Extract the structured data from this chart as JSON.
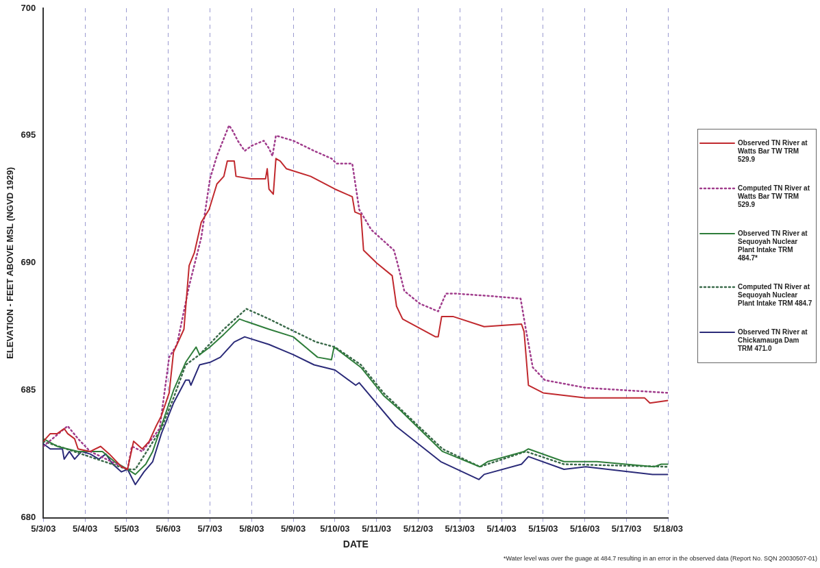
{
  "chart_data": {
    "type": "line",
    "xlabel": "DATE",
    "ylabel": "ELEVATION - FEET ABOVE MSL (NGVD 1929)",
    "annotations": [
      "*Water level was over the guage at 484.7 resulting in an error in the observed data (Report No. SQN 20030507-01)"
    ],
    "xlim": [
      "2003-05-03",
      "2003-05-18"
    ],
    "xticks": [
      {
        "value": "2003-05-03",
        "label": "5/3/03"
      },
      {
        "value": "2003-05-04",
        "label": "5/4/03"
      },
      {
        "value": "2003-05-05",
        "label": "5/5/03"
      },
      {
        "value": "2003-05-06",
        "label": "5/6/03"
      },
      {
        "value": "2003-05-07",
        "label": "5/7/03"
      },
      {
        "value": "2003-05-08",
        "label": "5/8/03"
      },
      {
        "value": "2003-05-09",
        "label": "5/9/03"
      },
      {
        "value": "2003-05-10",
        "label": "5/10/03"
      },
      {
        "value": "2003-05-11",
        "label": "5/11/03"
      },
      {
        "value": "2003-05-12",
        "label": "5/12/03"
      },
      {
        "value": "2003-05-13",
        "label": "5/13/03"
      },
      {
        "value": "2003-05-14",
        "label": "5/14/03"
      },
      {
        "value": "2003-05-15",
        "label": "5/15/03"
      },
      {
        "value": "2003-05-16",
        "label": "5/16/03"
      },
      {
        "value": "2003-05-17",
        "label": "5/17/03"
      },
      {
        "value": "2003-05-18",
        "label": "5/18/03"
      }
    ],
    "ylim": [
      680,
      700
    ],
    "yticks": [
      680,
      685,
      690,
      695,
      700
    ],
    "grid": "x",
    "legend": "right",
    "marker": "none",
    "series": [
      {
        "name": "Observed TN River at Watts Bar TW TRM 529.9",
        "color": "#c0282d",
        "line_style": "solid",
        "x": [
          "2003-05-03T00:00",
          "2003-05-03T04:00",
          "2003-05-03T08:00",
          "2003-05-03T12:00",
          "2003-05-03T14:00",
          "2003-05-03T18:00",
          "2003-05-03T20:00",
          "2003-05-04T03:00",
          "2003-05-04T09:00",
          "2003-05-04T14:00",
          "2003-05-04T21:00",
          "2003-05-05T00:30",
          "2003-05-05T04:00",
          "2003-05-05T09:00",
          "2003-05-05T13:00",
          "2003-05-05T17:00",
          "2003-05-05T20:00",
          "2003-05-06T00:30",
          "2003-05-06T03:00",
          "2003-05-06T09:00",
          "2003-05-06T12:00",
          "2003-05-06T15:00",
          "2003-05-06T19:00",
          "2003-05-06T23:30",
          "2003-05-07T04:00",
          "2003-05-07T08:00",
          "2003-05-07T10:00",
          "2003-05-07T14:00",
          "2003-05-07T15:00",
          "2003-05-07T23:30",
          "2003-05-08T08:00",
          "2003-05-08T09:00",
          "2003-05-08T10:00",
          "2003-05-08T12:30",
          "2003-05-08T14:00",
          "2003-05-08T16:30",
          "2003-05-08T20:00",
          "2003-05-09T10:00",
          "2003-05-10T00:00",
          "2003-05-10T10:00",
          "2003-05-10T11:30",
          "2003-05-10T15:00",
          "2003-05-10T16:30",
          "2003-05-11T00:00",
          "2003-05-11T09:00",
          "2003-05-11T11:30",
          "2003-05-11T15:00",
          "2003-05-12T10:00",
          "2003-05-12T11:30",
          "2003-05-12T13:30",
          "2003-05-12T20:00",
          "2003-05-13T14:00",
          "2003-05-14T11:30",
          "2003-05-14T13:00",
          "2003-05-14T15:30",
          "2003-05-15T00:00",
          "2003-05-16T00:30",
          "2003-05-17T10:30",
          "2003-05-17T13:30",
          "2003-05-18T00:00"
        ],
        "values": [
          683.0,
          683.3,
          683.3,
          683.5,
          683.3,
          683.1,
          682.7,
          682.6,
          682.8,
          682.5,
          682.0,
          681.9,
          683.0,
          682.7,
          683.0,
          683.6,
          684.0,
          684.9,
          686.5,
          687.4,
          689.9,
          690.4,
          691.6,
          692.1,
          693.1,
          693.4,
          694.0,
          694.0,
          693.4,
          693.3,
          693.3,
          693.7,
          692.9,
          692.7,
          694.1,
          694.0,
          693.7,
          693.4,
          692.9,
          692.6,
          692.0,
          691.9,
          690.5,
          690.0,
          689.5,
          688.3,
          687.8,
          687.1,
          687.1,
          687.9,
          687.9,
          687.5,
          687.6,
          687.3,
          685.2,
          684.9,
          684.7,
          684.7,
          684.5,
          684.6
        ]
      },
      {
        "name": "Computed TN River at Watts Bar TW TRM 529.9",
        "color": "#a03c8c",
        "line_style": "dotted",
        "x": [
          "2003-05-03T00:00",
          "2003-05-03T14:00",
          "2003-05-03T20:00",
          "2003-05-04T03:00",
          "2003-05-05T00:30",
          "2003-05-05T03:00",
          "2003-05-05T09:00",
          "2003-05-05T19:00",
          "2003-05-06T00:30",
          "2003-05-06T05:00",
          "2003-05-06T12:00",
          "2003-05-06T19:00",
          "2003-05-07T00:00",
          "2003-05-07T04:00",
          "2003-05-07T11:00",
          "2003-05-07T13:00",
          "2003-05-07T16:00",
          "2003-05-07T20:00",
          "2003-05-08T00:00",
          "2003-05-08T07:00",
          "2003-05-08T10:00",
          "2003-05-08T12:00",
          "2003-05-08T14:00",
          "2003-05-09T00:00",
          "2003-05-09T12:00",
          "2003-05-09T22:00",
          "2003-05-10T01:00",
          "2003-05-10T10:00",
          "2003-05-10T14:00",
          "2003-05-10T21:00",
          "2003-05-11T10:00",
          "2003-05-11T12:00",
          "2003-05-11T16:00",
          "2003-05-12T01:00",
          "2003-05-12T11:30",
          "2003-05-12T16:00",
          "2003-05-12T21:00",
          "2003-05-13T18:00",
          "2003-05-14T11:00",
          "2003-05-14T14:00",
          "2003-05-14T18:00",
          "2003-05-15T01:00",
          "2003-05-16T00:30",
          "2003-05-18T00:00"
        ],
        "values": [
          682.8,
          683.6,
          683.1,
          682.6,
          681.9,
          682.8,
          682.6,
          683.5,
          686.3,
          686.8,
          689.1,
          691.0,
          693.3,
          694.2,
          695.4,
          695.2,
          694.8,
          694.4,
          694.6,
          694.8,
          694.5,
          694.2,
          695.0,
          694.8,
          694.4,
          694.1,
          693.9,
          693.9,
          692.1,
          691.3,
          690.5,
          690.0,
          688.9,
          688.4,
          688.1,
          688.8,
          688.8,
          688.7,
          688.6,
          687.4,
          685.9,
          685.4,
          685.1,
          684.9
        ]
      },
      {
        "name": "Observed TN River at Sequoyah Nuclear Plant Intake TRM 484.7*",
        "color": "#2e7d3a",
        "line_style": "solid",
        "x": [
          "2003-05-03T00:00",
          "2003-05-03T08:00",
          "2003-05-03T20:00",
          "2003-05-04T10:00",
          "2003-05-04T17:00",
          "2003-05-05T00:30",
          "2003-05-05T05:00",
          "2003-05-05T11:00",
          "2003-05-05T15:00",
          "2003-05-05T20:00",
          "2003-05-06T03:00",
          "2003-05-06T10:00",
          "2003-05-06T16:00",
          "2003-05-06T18:00",
          "2003-05-07T00:00",
          "2003-05-07T08:00",
          "2003-05-07T17:00",
          "2003-05-07T21:00",
          "2003-05-08T10:00",
          "2003-05-09T00:00",
          "2003-05-09T14:00",
          "2003-05-09T22:00",
          "2003-05-09T23:30",
          "2003-05-10T15:00",
          "2003-05-11T04:00",
          "2003-05-11T14:00",
          "2003-05-12T14:00",
          "2003-05-13T11:30",
          "2003-05-13T16:00",
          "2003-05-14T13:00",
          "2003-05-14T15:30",
          "2003-05-15T12:00",
          "2003-05-16T07:00",
          "2003-05-17T16:00",
          "2003-05-17T20:00",
          "2003-05-18T00:00"
        ],
        "values": [
          683.1,
          682.8,
          682.6,
          682.6,
          682.2,
          681.9,
          681.7,
          682.1,
          682.6,
          683.6,
          685.0,
          686.1,
          686.7,
          686.4,
          686.7,
          687.2,
          687.8,
          687.7,
          687.4,
          687.1,
          686.3,
          686.2,
          686.7,
          685.9,
          684.8,
          684.2,
          682.6,
          682.0,
          682.2,
          682.6,
          682.7,
          682.2,
          682.2,
          682.0,
          682.1,
          682.1
        ]
      },
      {
        "name": "Computed TN River at Sequoyah Nuclear Plant Intake TRM 484.7",
        "color": "#3a6a4a",
        "line_style": "dotted",
        "x": [
          "2003-05-03T00:00",
          "2003-05-05T00:30",
          "2003-05-05T05:00",
          "2003-05-05T20:00",
          "2003-05-06T03:00",
          "2003-05-06T10:00",
          "2003-05-06T18:00",
          "2003-05-07T08:00",
          "2003-05-07T21:00",
          "2003-05-08T10:00",
          "2003-05-09T13:00",
          "2003-05-10T00:00",
          "2003-05-10T15:00",
          "2003-05-11T04:00",
          "2003-05-12T14:00",
          "2003-05-13T11:30",
          "2003-05-14T14:00",
          "2003-05-15T12:00",
          "2003-05-18T00:00"
        ],
        "values": [
          683.0,
          681.9,
          681.9,
          683.5,
          684.7,
          686.0,
          686.4,
          687.4,
          688.2,
          687.8,
          686.9,
          686.7,
          686.0,
          684.9,
          682.7,
          682.0,
          682.6,
          682.1,
          682.0
        ]
      },
      {
        "name": "Observed TN River at Chickamauga Dam TRM 471.0",
        "color": "#2a2a78",
        "line_style": "solid",
        "x": [
          "2003-05-03T00:00",
          "2003-05-03T04:00",
          "2003-05-03T11:00",
          "2003-05-03T12:00",
          "2003-05-03T15:00",
          "2003-05-03T18:00",
          "2003-05-03T22:00",
          "2003-05-04T03:00",
          "2003-05-04T08:00",
          "2003-05-04T12:00",
          "2003-05-04T16:00",
          "2003-05-04T21:00",
          "2003-05-05T00:30",
          "2003-05-05T05:00",
          "2003-05-05T10:00",
          "2003-05-05T15:00",
          "2003-05-05T20:00",
          "2003-05-06T03:00",
          "2003-05-06T10:00",
          "2003-05-06T12:00",
          "2003-05-06T13:00",
          "2003-05-06T18:00",
          "2003-05-07T00:00",
          "2003-05-07T06:00",
          "2003-05-07T14:00",
          "2003-05-07T20:00",
          "2003-05-08T10:00",
          "2003-05-09T00:00",
          "2003-05-09T12:00",
          "2003-05-10T00:00",
          "2003-05-10T12:00",
          "2003-05-10T14:00",
          "2003-05-11T11:00",
          "2003-05-12T13:00",
          "2003-05-13T11:00",
          "2003-05-13T14:00",
          "2003-05-14T11:30",
          "2003-05-14T15:30",
          "2003-05-15T12:00",
          "2003-05-16T00:30",
          "2003-05-17T15:00",
          "2003-05-18T00:00"
        ],
        "values": [
          682.9,
          682.7,
          682.7,
          682.3,
          682.6,
          682.3,
          682.6,
          682.5,
          682.3,
          682.5,
          682.1,
          681.8,
          681.9,
          681.3,
          681.8,
          682.2,
          683.3,
          684.5,
          685.4,
          685.4,
          685.2,
          686.0,
          686.1,
          686.3,
          686.9,
          687.1,
          686.8,
          686.4,
          686.0,
          685.8,
          685.2,
          685.3,
          683.6,
          682.2,
          681.5,
          681.7,
          682.1,
          682.4,
          681.9,
          682.0,
          681.7,
          681.7
        ]
      }
    ]
  }
}
